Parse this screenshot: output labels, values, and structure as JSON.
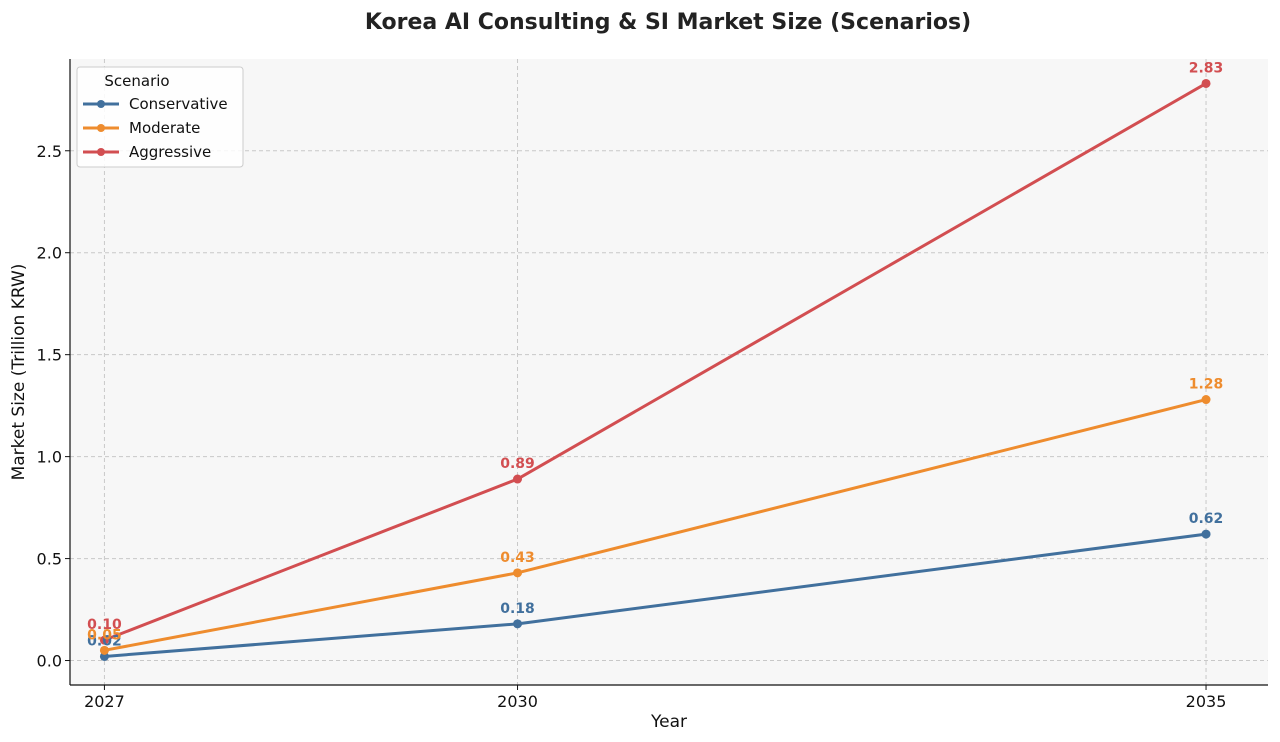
{
  "chart_data": {
    "type": "line",
    "title": "Korea AI Consulting & SI Market Size (Scenarios)",
    "xlabel": "Year",
    "ylabel": "Market Size (Trillion KRW)",
    "categories": [
      "2027",
      "2030",
      "2035"
    ],
    "x_values": [
      2027,
      2030,
      2035
    ],
    "ylim": [
      -0.12,
      2.95
    ],
    "yticks": [
      0.0,
      0.5,
      1.0,
      1.5,
      2.0,
      2.5
    ],
    "ytick_labels": [
      "0.0",
      "0.5",
      "1.0",
      "1.5",
      "2.0",
      "2.5"
    ],
    "grid": true,
    "legend": {
      "title": "Scenario",
      "placement": "top-left"
    },
    "series": [
      {
        "name": "Conservative",
        "color": "#41709d",
        "values": [
          0.02,
          0.18,
          0.62
        ],
        "labels": [
          "0.02",
          "0.18",
          "0.62"
        ]
      },
      {
        "name": "Moderate",
        "color": "#ee8c2e",
        "values": [
          0.05,
          0.43,
          1.28
        ],
        "labels": [
          "0.05",
          "0.43",
          "1.28"
        ]
      },
      {
        "name": "Aggressive",
        "color": "#d24e51",
        "values": [
          0.1,
          0.89,
          2.83
        ],
        "labels": [
          "0.10",
          "0.89",
          "2.83"
        ]
      }
    ]
  }
}
